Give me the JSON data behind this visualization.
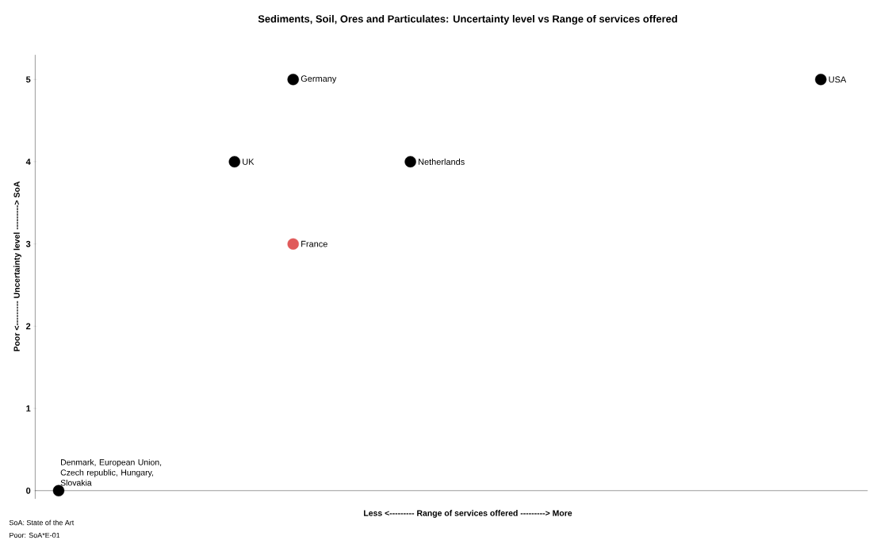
{
  "chart_data": {
    "type": "scatter",
    "title": "Sediments, Soil, Ores and Particulates: Uncertainty level vs Range of services offered",
    "xlabel": "Less <--------- Range of services offered ---------> More",
    "ylabel": "Poor <--------- Uncertainty level ---------> SoA",
    "annotations": [
      "SoA: State of the Art",
      "Poor: SoA*E-01"
    ],
    "marker": "circle",
    "tick_labels": "y",
    "ylim": [
      -0.1,
      5.3
    ],
    "yticks": [
      0,
      1,
      2,
      3,
      4,
      5
    ],
    "categories": [
      null,
      null,
      null,
      null,
      null,
      null,
      null,
      null,
      null,
      null,
      null,
      null,
      null,
      null
    ],
    "series": [
      {
        "name": "Denmark, European Union, Czech republic, Hungary, Slovakia",
        "color": "#000000",
        "values": [
          0,
          null,
          null,
          null,
          null,
          null,
          null,
          null,
          null,
          null,
          null,
          null,
          null,
          null
        ]
      },
      {
        "name": "UK",
        "color": "#000000",
        "values": [
          null,
          null,
          null,
          4,
          null,
          null,
          null,
          null,
          null,
          null,
          null,
          null,
          null,
          null
        ]
      },
      {
        "name": "Germany",
        "color": "#000000",
        "values": [
          null,
          null,
          null,
          null,
          5,
          null,
          null,
          null,
          null,
          null,
          null,
          null,
          null,
          null
        ]
      },
      {
        "name": "France",
        "color": "#e05a5a",
        "values": [
          null,
          null,
          null,
          null,
          3,
          null,
          null,
          null,
          null,
          null,
          null,
          null,
          null,
          null
        ]
      },
      {
        "name": "Netherlands",
        "color": "#000000",
        "values": [
          null,
          null,
          null,
          null,
          null,
          null,
          4,
          null,
          null,
          null,
          null,
          null,
          null,
          null
        ]
      },
      {
        "name": "USA",
        "color": "#000000",
        "values": [
          null,
          null,
          null,
          null,
          null,
          null,
          null,
          null,
          null,
          null,
          null,
          null,
          null,
          5
        ]
      }
    ]
  }
}
